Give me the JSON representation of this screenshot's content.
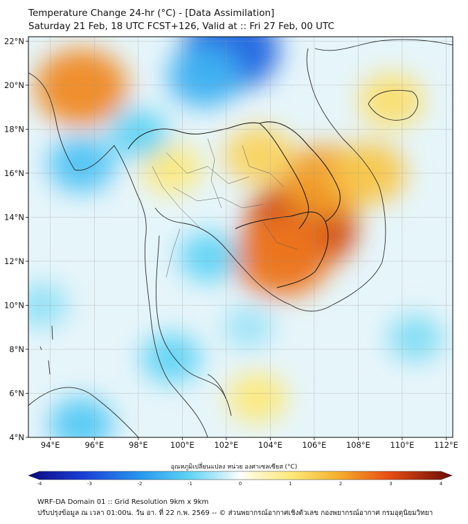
{
  "header": {
    "line1": "Temperature Change 24-hr (°C) - [Data Assimilation]",
    "line2": "Saturday 21 Feb, 18 UTC FCST+126, Valid at :: Fri 27 Feb, 00 UTC"
  },
  "map": {
    "lon_range": [
      93,
      112.3
    ],
    "lat_range": [
      4,
      22.2
    ],
    "lon_ticks": [
      "94°E",
      "96°E",
      "98°E",
      "100°E",
      "102°E",
      "104°E",
      "106°E",
      "108°E",
      "110°E",
      "112°E"
    ],
    "lat_ticks": [
      "4°N",
      "6°N",
      "8°N",
      "10°N",
      "12°N",
      "14°N",
      "16°N",
      "18°N",
      "20°N",
      "22°N"
    ],
    "grid": true,
    "anomalies": [
      {
        "lon": 95.4,
        "lat": 19.9,
        "value": 2.4
      },
      {
        "lon": 105.4,
        "lat": 13.6,
        "value": 3.2
      },
      {
        "lon": 104.5,
        "lat": 12.2,
        "value": 2.6
      },
      {
        "lon": 106.5,
        "lat": 15.6,
        "value": 2.2
      },
      {
        "lon": 103.5,
        "lat": 16.8,
        "value": 1.4
      },
      {
        "lon": 108.5,
        "lat": 16.0,
        "value": 1.6
      },
      {
        "lon": 109.5,
        "lat": 19.3,
        "value": 1.2
      },
      {
        "lon": 99.5,
        "lat": 16.2,
        "value": 1.0
      },
      {
        "lon": 103.4,
        "lat": 5.8,
        "value": 1.0
      },
      {
        "lon": 102.2,
        "lat": 21.6,
        "value": -2.6
      },
      {
        "lon": 101.0,
        "lat": 20.4,
        "value": -1.6
      },
      {
        "lon": 95.4,
        "lat": 16.4,
        "value": -1.3
      },
      {
        "lon": 98.0,
        "lat": 17.8,
        "value": -1.0
      },
      {
        "lon": 95.4,
        "lat": 4.6,
        "value": -1.2
      },
      {
        "lon": 99.5,
        "lat": 7.6,
        "value": -1.0
      },
      {
        "lon": 101.2,
        "lat": 12.2,
        "value": -1.0
      },
      {
        "lon": 110.6,
        "lat": 8.5,
        "value": -0.8
      },
      {
        "lon": 103.0,
        "lat": 9.0,
        "value": -0.6
      },
      {
        "lon": 93.6,
        "lat": 10.0,
        "value": -0.7
      }
    ]
  },
  "colorbar": {
    "label": "อุณหภูมิเปลี่ยนแปลง หน่วย องศาเซลเซียส (°C)",
    "ticks": [
      "-4",
      "-3",
      "-2",
      "-1",
      "0",
      "1",
      "2",
      "3",
      "4"
    ],
    "min": -4,
    "max": 4
  },
  "footer": {
    "line1": "WRF-DA Domain 01 :: Grid Resolution 9km x 9km",
    "line2": "ปรับปรุงข้อมูล ณ เวลา 01:00น. วัน อา. ที่ 22 ก.พ. 2569 -- © ส่วนพยากรณ์อากาศเชิงตัวเลข กองพยากรณ์อากาศ กรมอุตุนิยมวิทยา"
  }
}
